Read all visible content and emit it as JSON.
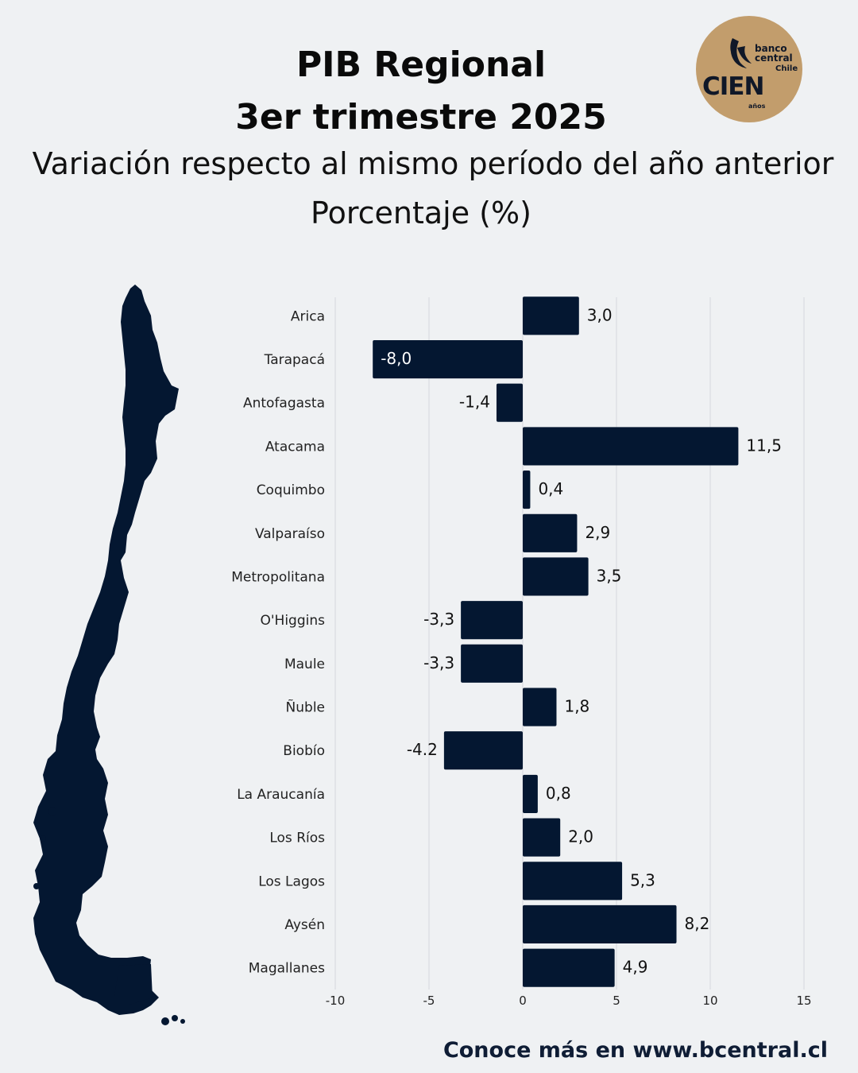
{
  "title_line1": "PIB Regional",
  "title_line2": "3er trimestre 2025",
  "subtitle": "Variación respecto al mismo período del año anterior",
  "unit": "Porcentaje (%)",
  "logo": {
    "bank_line1": "banco",
    "bank_line2": "central",
    "country": "Chile",
    "cien": "CIEN",
    "years": "años"
  },
  "footer": "Conoce más en www.bcentral.cl",
  "colors": {
    "bar": "#041731",
    "background": "#eff1f3",
    "logo": "#c29d6c",
    "grid": "#d6d8dc"
  },
  "chart_data": {
    "type": "bar",
    "orientation": "horizontal",
    "categories": [
      "Arica",
      "Tarapacá",
      "Antofagasta",
      "Atacama",
      "Coquimbo",
      "Valparaíso",
      "Metropolitana",
      "O'Higgins",
      "Maule",
      "Ñuble",
      "Biobío",
      "La Araucanía",
      "Los Ríos",
      "Los Lagos",
      "Aysén",
      "Magallanes"
    ],
    "values": [
      3.0,
      -8.0,
      -1.4,
      11.5,
      0.4,
      2.9,
      3.5,
      -3.3,
      -3.3,
      1.8,
      -4.2,
      0.8,
      2.0,
      5.3,
      8.2,
      4.9
    ],
    "labels": [
      "3,0",
      "-8,0",
      "-1,4",
      "11,5",
      "0,4",
      "2,9",
      "3,5",
      "-3,3",
      "-3,3",
      "1,8",
      "-4.2",
      "0,8",
      "2,0",
      "5,3",
      "8,2",
      "4,9"
    ],
    "xticks": [
      -10,
      -5,
      0,
      5,
      10,
      15
    ],
    "xlim": [
      -10,
      15
    ],
    "grid": true
  }
}
